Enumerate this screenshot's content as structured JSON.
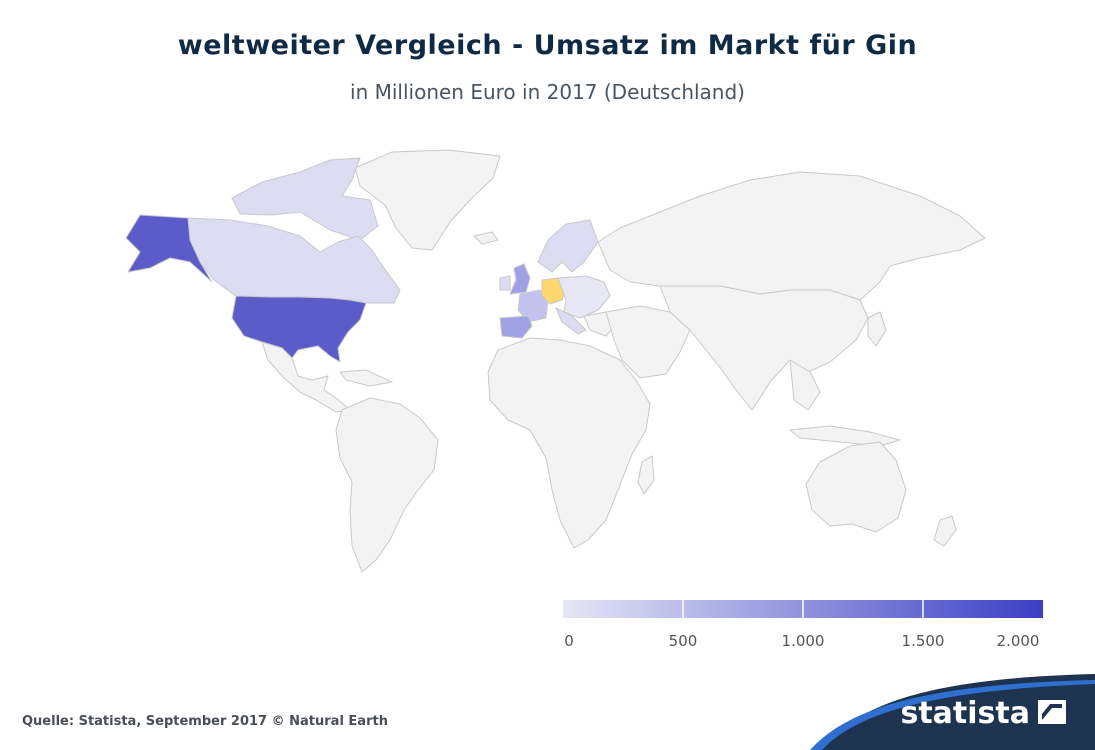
{
  "header": {
    "title": "weltweiter Vergleich - Umsatz im Markt für Gin",
    "subtitle": "in Millionen Euro in 2017 (Deutschland)"
  },
  "chart_data": {
    "type": "choropleth-map",
    "title": "weltweiter Vergleich - Umsatz im Markt für Gin",
    "subtitle": "in Millionen Euro in 2017 (Deutschland)",
    "highlighted_country": "Deutschland",
    "highlight_color": "#ffd76e",
    "color_scale": {
      "min": 0,
      "max": 2000,
      "ticks": [
        "0",
        "500",
        "1.000",
        "1.500",
        "2.000"
      ],
      "low_color": "#e6e6f6",
      "high_color": "#3b3fc4"
    },
    "no_data_color": "#f3f3f3",
    "border_color": "#c9c9c9"
  },
  "footer": {
    "source": "Quelle: Statista, September 2017 © Natural Earth",
    "brand": "statista"
  }
}
